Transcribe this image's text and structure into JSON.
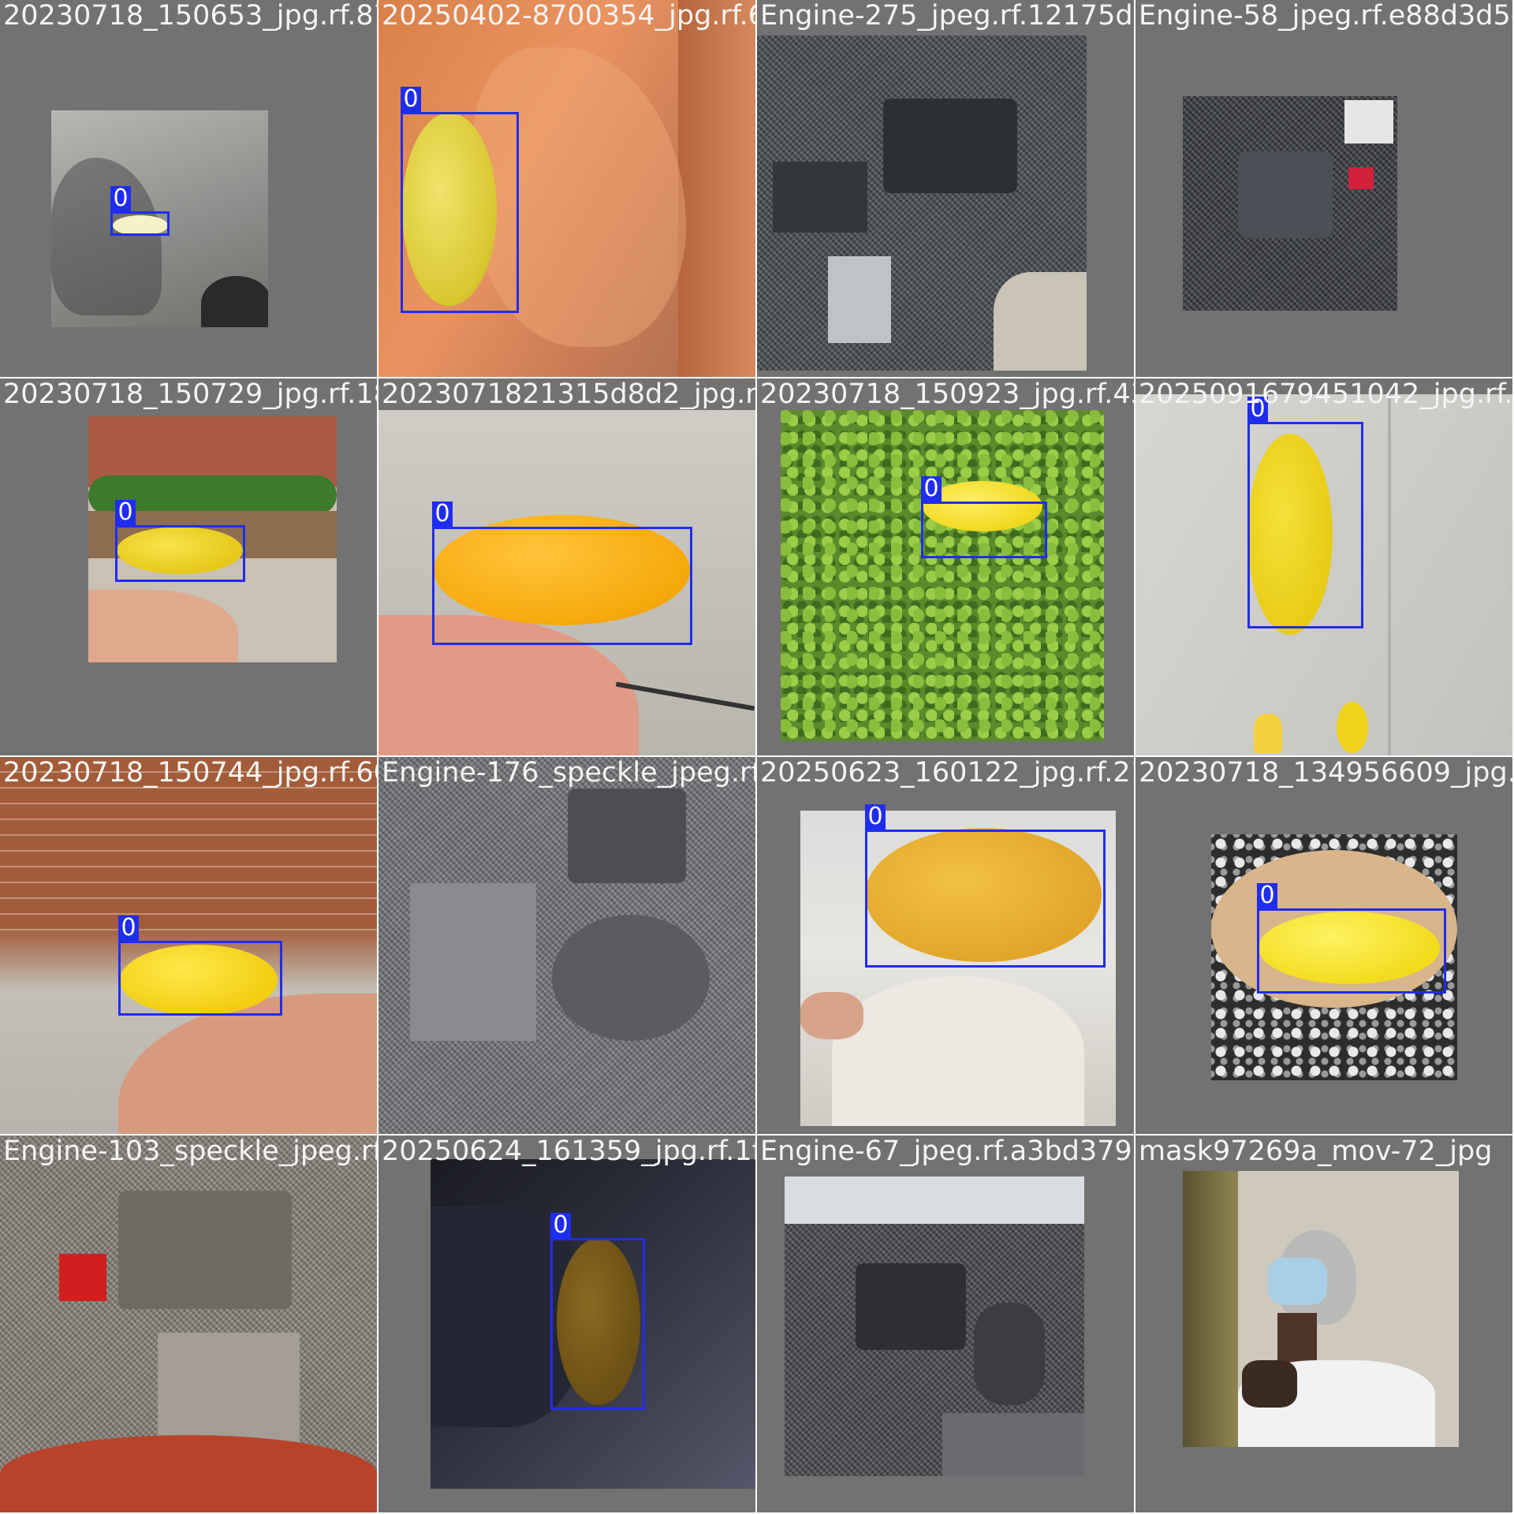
{
  "grid": {
    "tiles": [
      {
        "filename": "20230718_150653_jpg.rf.87610e04623e8760354_jpg.rf.6b",
        "label": "0"
      },
      {
        "filename": "20250402-8700354_jpg.rf.6b662f72275ae12cf",
        "label": "0"
      },
      {
        "filename": "Engine-275_jpeg.rf.12175d29Engine-58234054f.e88d3d5e",
        "label": ""
      },
      {
        "filename": "Engine-58_jpeg.rf.e88d3d5e",
        "label": ""
      },
      {
        "filename": "20230718_150729_jpg.rf.18c4d07ba31586d2_jpg.rf.d0",
        "label": "0"
      },
      {
        "filename": "2023071821315d8d2_jpg.rf.d06",
        "label": "0"
      },
      {
        "filename": "20230718_150923_jpg.rf.4382509617945042_jpg.rf.61",
        "label": "0"
      },
      {
        "filename": "2025091679451042_jpg.rf.61",
        "label": "0"
      },
      {
        "filename": "20230718_150744_jpg.rf.60d0e2a5976c95588",
        "label": "0"
      },
      {
        "filename": "Engine-176_speckle_jpeg.rf.d28250623e60122",
        "label": ""
      },
      {
        "filename": "20250623_160122_jpg.rf.21482620a8345f6609",
        "label": "0"
      },
      {
        "filename": "20230718_134956609_jpg.rf.52",
        "label": "0"
      },
      {
        "filename": "Engine-103_speckle_jpeg.rf.8425062a4efc21359",
        "label": ""
      },
      {
        "filename": "20250624_161359_jpg.rf.1f2aa7e0667e96dbf",
        "label": "0"
      },
      {
        "filename": "Engine-67_jpeg.rf.a3bd37985ask97269a.c61",
        "label": ""
      },
      {
        "filename": "mask97269a_mov-72_jpg",
        "label": ""
      }
    ]
  },
  "colors": {
    "box": "#1f2df0",
    "tile_bg": "#727272",
    "ball_yellow": "#f2d21a",
    "ball_orange": "#f6b10c"
  }
}
